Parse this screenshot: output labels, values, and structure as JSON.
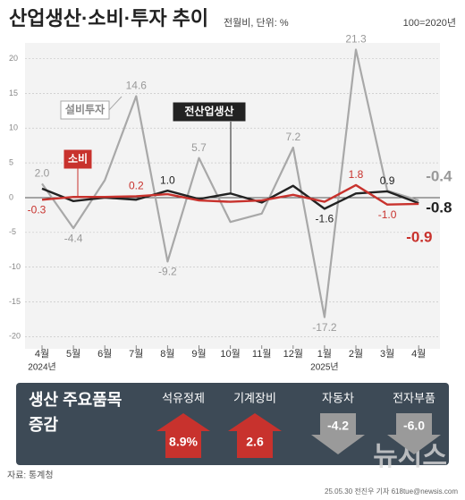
{
  "header": {
    "title": "산업생산·소비·투자 추이",
    "subtitle": "전월비, 단위: %",
    "base_note": "100=2020년"
  },
  "chart_data": {
    "type": "line",
    "categories": [
      "4월",
      "5월",
      "6월",
      "7월",
      "8월",
      "9월",
      "10월",
      "11월",
      "12월",
      "1월",
      "2월",
      "3월",
      "4월"
    ],
    "years": [
      "2024년",
      null,
      null,
      null,
      null,
      null,
      null,
      null,
      null,
      "2025년",
      null,
      null,
      null
    ],
    "ylim": [
      -21.5,
      22
    ],
    "yticks": [
      20,
      15,
      10,
      5,
      0,
      -5,
      -10,
      -15,
      -20
    ],
    "grid": true,
    "series": [
      {
        "name": "설비투자",
        "color": "#a8a8a8",
        "values": [
          2.0,
          -4.4,
          2.5,
          14.6,
          -9.2,
          5.7,
          -3.5,
          -2.3,
          7.2,
          -17.2,
          21.3,
          1.0,
          -0.4
        ],
        "value_labels": [
          "2.0",
          "-4.4",
          null,
          "14.6",
          "-9.2",
          "5.7",
          null,
          null,
          "7.2",
          "-17.2",
          "21.3",
          null,
          "-0.4"
        ]
      },
      {
        "name": "전산업생산",
        "color": "#222222",
        "values": [
          1.3,
          -0.5,
          0.0,
          -0.3,
          1.0,
          -0.2,
          0.6,
          -0.7,
          1.7,
          -1.6,
          0.6,
          0.9,
          -0.8
        ],
        "value_labels": [
          null,
          null,
          null,
          null,
          "1.0",
          null,
          null,
          null,
          null,
          "-1.6",
          null,
          "0.9",
          "-0.8"
        ]
      },
      {
        "name": "소비",
        "color": "#c8322d",
        "values": [
          -0.3,
          0.1,
          0.1,
          0.2,
          0.5,
          -0.4,
          -0.6,
          -0.4,
          0.4,
          -0.6,
          1.8,
          -1.0,
          -0.9
        ],
        "value_labels": [
          "-0.3",
          null,
          null,
          "0.2",
          null,
          null,
          null,
          null,
          null,
          null,
          "1.8",
          "-1.0",
          "-0.9"
        ]
      }
    ]
  },
  "panel": {
    "title_line1": "생산 주요품목",
    "title_line2": "증감",
    "up_color": "#c8322d",
    "down_color": "#9a9a9a",
    "items": [
      {
        "name": "석유정제",
        "value": 8.9,
        "value_label": "8.9%"
      },
      {
        "name": "기계장비",
        "value": 2.6,
        "value_label": "2.6"
      },
      {
        "name": "자동차",
        "value": -4.2,
        "value_label": "-4.2"
      },
      {
        "name": "전자부품",
        "value": -6.0,
        "value_label": "-6.0"
      }
    ]
  },
  "footer": {
    "source": "자료: 통계청",
    "credit": "25.05.30 전진우 기자 618tue@newsis.com",
    "watermark": "뉴시스"
  }
}
